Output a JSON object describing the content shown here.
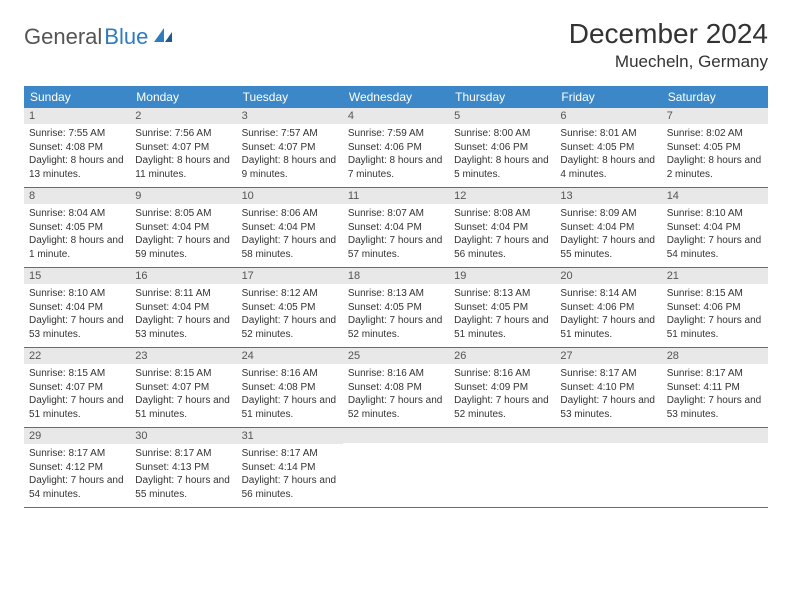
{
  "logo": {
    "part1": "General",
    "part2": "Blue"
  },
  "title": "December 2024",
  "location": "Muecheln, Germany",
  "colors": {
    "header_bg": "#3b87c8",
    "header_text": "#ffffff",
    "daynum_bg": "#e8e8e8",
    "row_border": "#2f7bbf",
    "logo_gray": "#555555",
    "logo_blue": "#2f7bbf",
    "body_text": "#333333"
  },
  "weekdays": [
    "Sunday",
    "Monday",
    "Tuesday",
    "Wednesday",
    "Thursday",
    "Friday",
    "Saturday"
  ],
  "weeks": [
    [
      {
        "n": "1",
        "sr": "7:55 AM",
        "ss": "4:08 PM",
        "dl": "8 hours and 13 minutes."
      },
      {
        "n": "2",
        "sr": "7:56 AM",
        "ss": "4:07 PM",
        "dl": "8 hours and 11 minutes."
      },
      {
        "n": "3",
        "sr": "7:57 AM",
        "ss": "4:07 PM",
        "dl": "8 hours and 9 minutes."
      },
      {
        "n": "4",
        "sr": "7:59 AM",
        "ss": "4:06 PM",
        "dl": "8 hours and 7 minutes."
      },
      {
        "n": "5",
        "sr": "8:00 AM",
        "ss": "4:06 PM",
        "dl": "8 hours and 5 minutes."
      },
      {
        "n": "6",
        "sr": "8:01 AM",
        "ss": "4:05 PM",
        "dl": "8 hours and 4 minutes."
      },
      {
        "n": "7",
        "sr": "8:02 AM",
        "ss": "4:05 PM",
        "dl": "8 hours and 2 minutes."
      }
    ],
    [
      {
        "n": "8",
        "sr": "8:04 AM",
        "ss": "4:05 PM",
        "dl": "8 hours and 1 minute."
      },
      {
        "n": "9",
        "sr": "8:05 AM",
        "ss": "4:04 PM",
        "dl": "7 hours and 59 minutes."
      },
      {
        "n": "10",
        "sr": "8:06 AM",
        "ss": "4:04 PM",
        "dl": "7 hours and 58 minutes."
      },
      {
        "n": "11",
        "sr": "8:07 AM",
        "ss": "4:04 PM",
        "dl": "7 hours and 57 minutes."
      },
      {
        "n": "12",
        "sr": "8:08 AM",
        "ss": "4:04 PM",
        "dl": "7 hours and 56 minutes."
      },
      {
        "n": "13",
        "sr": "8:09 AM",
        "ss": "4:04 PM",
        "dl": "7 hours and 55 minutes."
      },
      {
        "n": "14",
        "sr": "8:10 AM",
        "ss": "4:04 PM",
        "dl": "7 hours and 54 minutes."
      }
    ],
    [
      {
        "n": "15",
        "sr": "8:10 AM",
        "ss": "4:04 PM",
        "dl": "7 hours and 53 minutes."
      },
      {
        "n": "16",
        "sr": "8:11 AM",
        "ss": "4:04 PM",
        "dl": "7 hours and 53 minutes."
      },
      {
        "n": "17",
        "sr": "8:12 AM",
        "ss": "4:05 PM",
        "dl": "7 hours and 52 minutes."
      },
      {
        "n": "18",
        "sr": "8:13 AM",
        "ss": "4:05 PM",
        "dl": "7 hours and 52 minutes."
      },
      {
        "n": "19",
        "sr": "8:13 AM",
        "ss": "4:05 PM",
        "dl": "7 hours and 51 minutes."
      },
      {
        "n": "20",
        "sr": "8:14 AM",
        "ss": "4:06 PM",
        "dl": "7 hours and 51 minutes."
      },
      {
        "n": "21",
        "sr": "8:15 AM",
        "ss": "4:06 PM",
        "dl": "7 hours and 51 minutes."
      }
    ],
    [
      {
        "n": "22",
        "sr": "8:15 AM",
        "ss": "4:07 PM",
        "dl": "7 hours and 51 minutes."
      },
      {
        "n": "23",
        "sr": "8:15 AM",
        "ss": "4:07 PM",
        "dl": "7 hours and 51 minutes."
      },
      {
        "n": "24",
        "sr": "8:16 AM",
        "ss": "4:08 PM",
        "dl": "7 hours and 51 minutes."
      },
      {
        "n": "25",
        "sr": "8:16 AM",
        "ss": "4:08 PM",
        "dl": "7 hours and 52 minutes."
      },
      {
        "n": "26",
        "sr": "8:16 AM",
        "ss": "4:09 PM",
        "dl": "7 hours and 52 minutes."
      },
      {
        "n": "27",
        "sr": "8:17 AM",
        "ss": "4:10 PM",
        "dl": "7 hours and 53 minutes."
      },
      {
        "n": "28",
        "sr": "8:17 AM",
        "ss": "4:11 PM",
        "dl": "7 hours and 53 minutes."
      }
    ],
    [
      {
        "n": "29",
        "sr": "8:17 AM",
        "ss": "4:12 PM",
        "dl": "7 hours and 54 minutes."
      },
      {
        "n": "30",
        "sr": "8:17 AM",
        "ss": "4:13 PM",
        "dl": "7 hours and 55 minutes."
      },
      {
        "n": "31",
        "sr": "8:17 AM",
        "ss": "4:14 PM",
        "dl": "7 hours and 56 minutes."
      },
      null,
      null,
      null,
      null
    ]
  ],
  "labels": {
    "sunrise": "Sunrise:",
    "sunset": "Sunset:",
    "daylight": "Daylight:"
  }
}
